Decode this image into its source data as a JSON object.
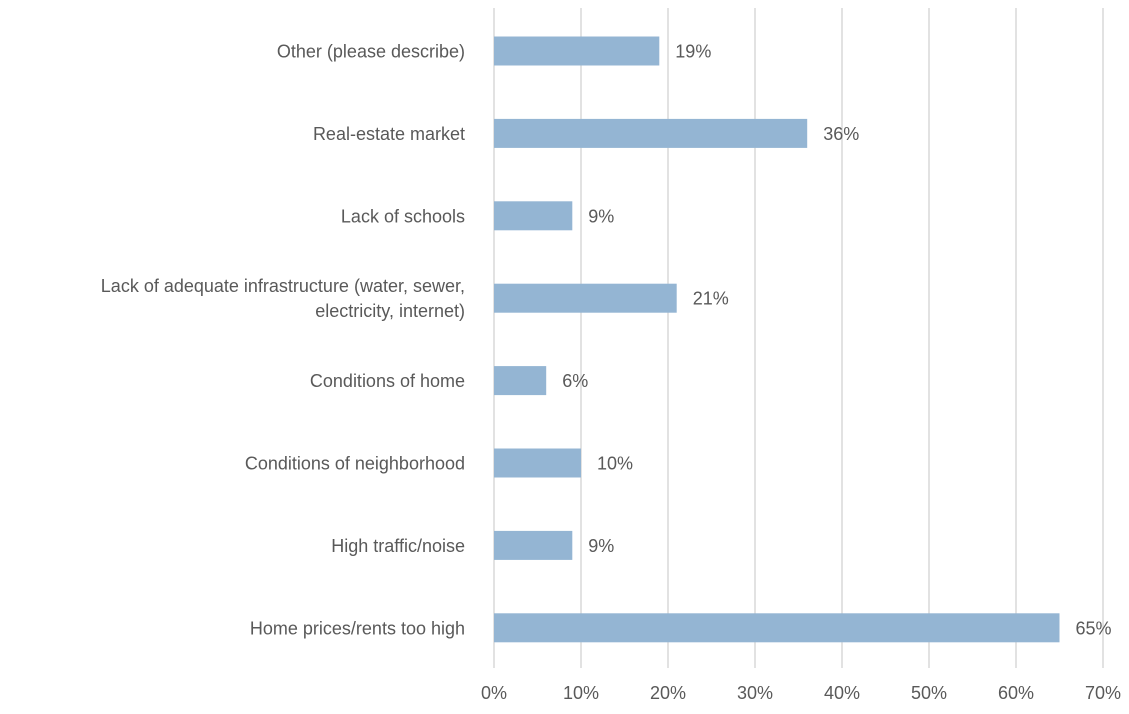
{
  "chart_data": {
    "type": "bar",
    "orientation": "horizontal",
    "categories": [
      "Other (please describe)",
      "Real-estate market",
      "Lack of schools",
      "Lack of adequate infrastructure (water, sewer, electricity, internet)",
      "Conditions of home",
      "Conditions of neighborhood",
      "High traffic/noise",
      "Home prices/rents too high"
    ],
    "category_lines": [
      [
        "Other (please describe)"
      ],
      [
        "Real-estate market"
      ],
      [
        "Lack of schools"
      ],
      [
        "Lack of adequate infrastructure (water, sewer,",
        "electricity, internet)"
      ],
      [
        "Conditions of home"
      ],
      [
        "Conditions of neighborhood"
      ],
      [
        "High traffic/noise"
      ],
      [
        "Home prices/rents too high"
      ]
    ],
    "values": [
      19,
      36,
      9,
      21,
      6,
      10,
      9,
      65
    ],
    "data_labels": [
      "19%",
      "36%",
      "9%",
      "21%",
      "6%",
      "10%",
      "9%",
      "65%"
    ],
    "xlim": [
      0,
      70
    ],
    "xticks": [
      0,
      10,
      20,
      30,
      40,
      50,
      60,
      70
    ],
    "xtick_labels": [
      "0%",
      "10%",
      "20%",
      "30%",
      "40%",
      "50%",
      "60%",
      "70%"
    ],
    "title": "",
    "xlabel": "",
    "ylabel": "",
    "grid": "vertical",
    "legend": "none",
    "colors": {
      "bar": "#94b5d3",
      "grid": "#d9d9d9",
      "text": "#595959"
    }
  }
}
